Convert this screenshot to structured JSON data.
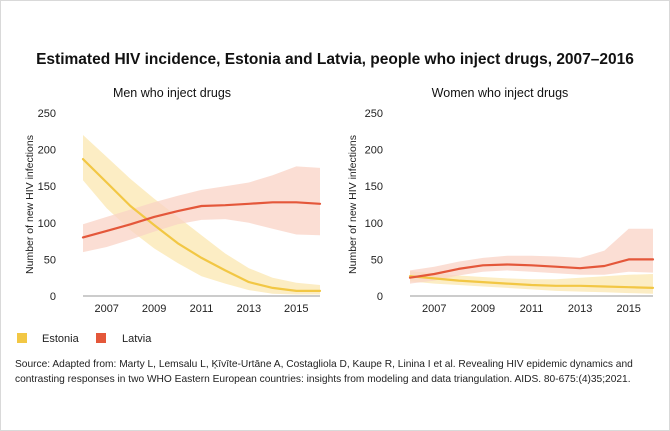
{
  "title": "Estimated HIV incidence, Estonia and Latvia, people who inject drugs, 2007–2016",
  "source": "Source: Adapted from: Marty L, Lemsalu L, Ķīvīte-Urtāne A, Costagliola D, Kaupe R, Linina I et al. Revealing HIV epidemic dynamics and contrasting responses in two WHO Eastern European countries: insights from modeling and data triangulation. AIDS. 80-675:(4)35;2021.",
  "legend": [
    {
      "label": "Estonia",
      "color": "#f2c744"
    },
    {
      "label": "Latvia",
      "color": "#e4573a"
    }
  ],
  "chart_data": [
    {
      "type": "line",
      "title": "Men who inject drugs",
      "ylabel": "Number of new HIV infections",
      "xlabel": "",
      "ylim": [
        0,
        250
      ],
      "xlim": [
        2006,
        2016
      ],
      "xticks": [
        2007,
        2009,
        2011,
        2013,
        2015
      ],
      "yticks": [
        0,
        50,
        100,
        150,
        200,
        250
      ],
      "x": [
        2006,
        2007,
        2008,
        2009,
        2010,
        2011,
        2012,
        2013,
        2014,
        2015,
        2016
      ],
      "series": [
        {
          "name": "Estonia",
          "color": "#f2c744",
          "band_color": "#fbe7b0",
          "values": [
            187,
            155,
            123,
            97,
            72,
            52,
            35,
            19,
            11,
            7,
            7
          ],
          "lower": [
            158,
            120,
            90,
            65,
            45,
            27,
            17,
            8,
            3,
            2,
            2
          ],
          "upper": [
            220,
            190,
            160,
            133,
            108,
            83,
            58,
            38,
            25,
            18,
            15
          ]
        },
        {
          "name": "Latvia",
          "color": "#e4573a",
          "band_color": "#f9d3c6",
          "values": [
            80,
            89,
            98,
            108,
            116,
            123,
            124,
            126,
            128,
            128,
            126
          ],
          "lower": [
            60,
            67,
            77,
            88,
            98,
            104,
            105,
            100,
            92,
            84,
            83
          ],
          "upper": [
            98,
            108,
            118,
            128,
            137,
            145,
            150,
            155,
            165,
            177,
            175
          ]
        }
      ]
    },
    {
      "type": "line",
      "title": "Women who inject drugs",
      "ylabel": "Number of new HIV infections",
      "xlabel": "",
      "ylim": [
        0,
        250
      ],
      "xlim": [
        2006,
        2016
      ],
      "xticks": [
        2007,
        2009,
        2011,
        2013,
        2015
      ],
      "yticks": [
        0,
        50,
        100,
        150,
        200,
        250
      ],
      "x": [
        2006,
        2007,
        2008,
        2009,
        2010,
        2011,
        2012,
        2013,
        2014,
        2015,
        2016
      ],
      "series": [
        {
          "name": "Estonia",
          "color": "#f2c744",
          "band_color": "#fbe7b0",
          "values": [
            27,
            24,
            21,
            19,
            17,
            15,
            14,
            14,
            13,
            12,
            11
          ],
          "lower": [
            20,
            17,
            15,
            13,
            11,
            9,
            7,
            6,
            5,
            4,
            3
          ],
          "upper": [
            34,
            31,
            28,
            26,
            24,
            23,
            23,
            25,
            27,
            29,
            30
          ]
        },
        {
          "name": "Latvia",
          "color": "#e4573a",
          "band_color": "#f9d3c6",
          "values": [
            25,
            30,
            37,
            42,
            43,
            42,
            40,
            38,
            41,
            50,
            50
          ],
          "lower": [
            17,
            21,
            28,
            33,
            35,
            33,
            31,
            29,
            29,
            33,
            32
          ],
          "upper": [
            35,
            40,
            47,
            52,
            55,
            55,
            54,
            52,
            62,
            92,
            92
          ]
        }
      ]
    }
  ]
}
